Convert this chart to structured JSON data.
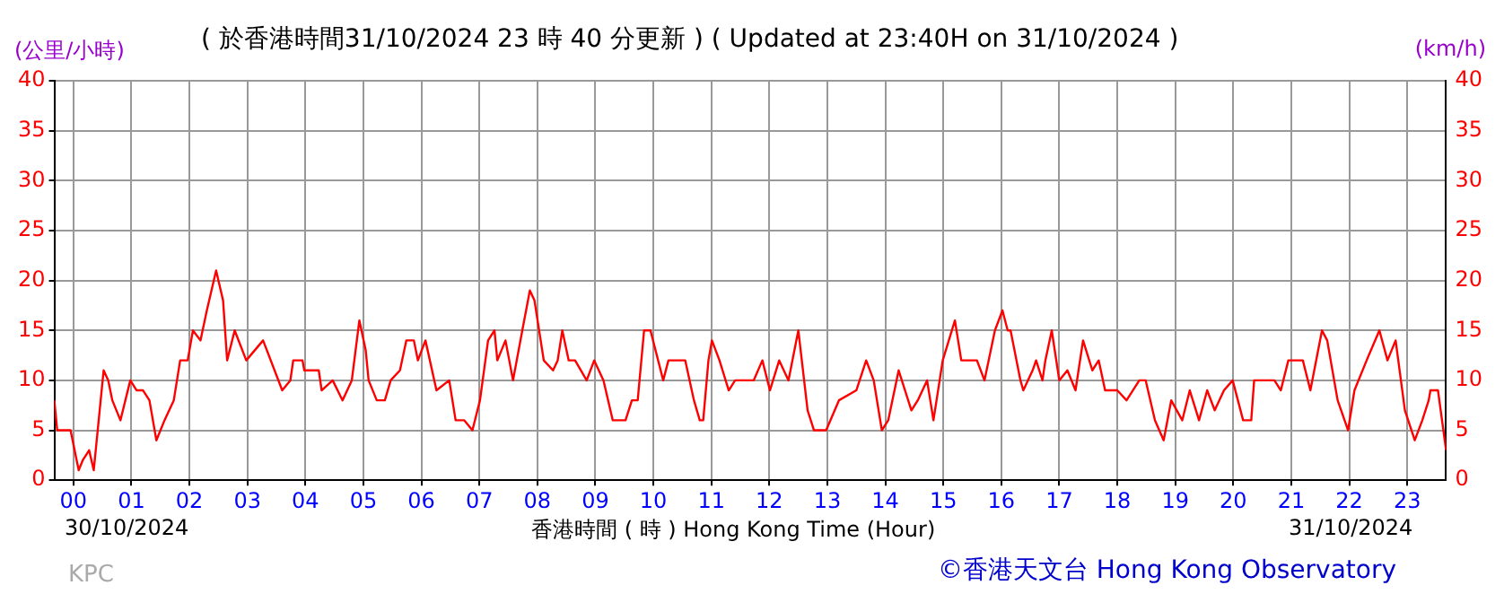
{
  "chart_data": {
    "type": "line",
    "title": "( 於香港時間31/10/2024 23 時 40 分更新 ) ( Updated at 23:40H on 31/10/2024 )",
    "xlabel": "香港時間 ( 時 ) Hong Kong Time (Hour)",
    "ylabel": "(公里/小時)",
    "y2label": "(km/h)",
    "annotations": [
      "30/10/2024",
      "31/10/2024",
      "KPC",
      "©香港天文台 Hong Kong Observatory"
    ],
    "series": [
      {
        "color": "#ff0000",
        "x": [
          -0.33,
          -0.28,
          -0.05,
          0.09,
          0.16,
          0.27,
          0.35,
          0.52,
          0.6,
          0.67,
          0.81,
          0.98,
          1.09,
          1.2,
          1.31,
          1.43,
          1.57,
          1.73,
          1.84,
          1.97,
          2.06,
          2.19,
          2.3,
          2.46,
          2.58,
          2.65,
          2.78,
          2.98,
          3.27,
          3.6,
          3.74,
          3.79,
          3.95,
          3.98,
          4.23,
          4.28,
          4.47,
          4.64,
          4.8,
          4.93,
          5.04,
          5.09,
          5.23,
          5.37,
          5.47,
          5.63,
          5.74,
          5.87,
          5.94,
          6.07,
          6.26,
          6.48,
          6.59,
          6.74,
          6.88,
          7.01,
          7.15,
          7.26,
          7.31,
          7.45,
          7.58,
          7.74,
          7.87,
          7.95,
          8.11,
          8.27,
          8.35,
          8.43,
          8.54,
          8.65,
          8.85,
          8.98,
          9.14,
          9.3,
          9.52,
          9.63,
          9.73,
          9.84,
          9.95,
          10.17,
          10.26,
          10.55,
          10.7,
          10.8,
          10.86,
          10.95,
          11.01,
          11.14,
          11.3,
          11.41,
          11.73,
          11.88,
          12.01,
          12.17,
          12.33,
          12.5,
          12.66,
          12.77,
          12.98,
          13.2,
          13.5,
          13.67,
          13.8,
          13.94,
          14.05,
          14.23,
          14.45,
          14.56,
          14.72,
          14.83,
          14.99,
          15.2,
          15.31,
          15.58,
          15.71,
          15.89,
          16.02,
          16.11,
          16.16,
          16.33,
          16.38,
          16.54,
          16.6,
          16.71,
          16.76,
          16.87,
          17.0,
          17.14,
          17.28,
          17.41,
          17.57,
          17.68,
          17.79,
          18.0,
          18.16,
          18.38,
          18.49,
          18.65,
          18.8,
          18.93,
          19.12,
          19.25,
          19.41,
          19.55,
          19.68,
          19.84,
          19.99,
          20.17,
          20.31,
          20.36,
          20.71,
          20.82,
          20.95,
          21.2,
          21.33,
          21.53,
          21.62,
          21.8,
          21.98,
          22.09,
          22.3,
          22.52,
          22.66,
          22.8,
          22.96,
          23.13,
          23.26,
          23.37,
          23.4,
          23.53,
          23.67
        ],
        "values": [
          8,
          5,
          5,
          1,
          2,
          3,
          1,
          11,
          10,
          8,
          6,
          10,
          9,
          9,
          8,
          4,
          6,
          8,
          12,
          12,
          15,
          14,
          17,
          21,
          18,
          12,
          15,
          12,
          14,
          9,
          10,
          12,
          12,
          11,
          11,
          9,
          10,
          8,
          10,
          16,
          13,
          10,
          8,
          8,
          10,
          11,
          14,
          14,
          12,
          14,
          9,
          10,
          6,
          6,
          5,
          8,
          14,
          15,
          12,
          14,
          10,
          15,
          19,
          18,
          12,
          11,
          12,
          15,
          12,
          12,
          10,
          12,
          10,
          6,
          6,
          8,
          8,
          15,
          15,
          10,
          12,
          12,
          8,
          6,
          6,
          12,
          14,
          12,
          9,
          10,
          10,
          12,
          9,
          12,
          10,
          15,
          7,
          5,
          5,
          8,
          9,
          12,
          10,
          5,
          6,
          11,
          7,
          8,
          10,
          6,
          12,
          16,
          12,
          12,
          10,
          15,
          17,
          15,
          15,
          10,
          9,
          11,
          12,
          10,
          12,
          15,
          10,
          11,
          9,
          14,
          11,
          12,
          9,
          9,
          8,
          10,
          10,
          6,
          4,
          8,
          6,
          9,
          6,
          9,
          7,
          9,
          10,
          6,
          6,
          10,
          10,
          9,
          12,
          12,
          9,
          15,
          14,
          8,
          5,
          9,
          12,
          15,
          12,
          14,
          7,
          4,
          6,
          8,
          9,
          9,
          3
        ]
      }
    ],
    "xlim": [
      -0.33,
      23.67
    ],
    "xticks": [
      {
        "value": 0,
        "label": "00"
      },
      {
        "value": 1,
        "label": "01"
      },
      {
        "value": 2,
        "label": "02"
      },
      {
        "value": 3,
        "label": "03"
      },
      {
        "value": 4,
        "label": "04"
      },
      {
        "value": 5,
        "label": "05"
      },
      {
        "value": 6,
        "label": "06"
      },
      {
        "value": 7,
        "label": "07"
      },
      {
        "value": 8,
        "label": "08"
      },
      {
        "value": 9,
        "label": "09"
      },
      {
        "value": 10,
        "label": "10"
      },
      {
        "value": 11,
        "label": "11"
      },
      {
        "value": 12,
        "label": "12"
      },
      {
        "value": 13,
        "label": "13"
      },
      {
        "value": 14,
        "label": "14"
      },
      {
        "value": 15,
        "label": "15"
      },
      {
        "value": 16,
        "label": "16"
      },
      {
        "value": 17,
        "label": "17"
      },
      {
        "value": 18,
        "label": "18"
      },
      {
        "value": 19,
        "label": "19"
      },
      {
        "value": 20,
        "label": "20"
      },
      {
        "value": 21,
        "label": "21"
      },
      {
        "value": 22,
        "label": "22"
      },
      {
        "value": 23,
        "label": "23"
      }
    ],
    "ylim": [
      0,
      40
    ],
    "yticks": [
      0,
      5,
      10,
      15,
      20,
      25,
      30,
      35,
      40
    ],
    "y2lim": [
      0,
      40
    ],
    "y2ticks": [
      0,
      5,
      10,
      15,
      20,
      25,
      30,
      35,
      40
    ],
    "grid": true,
    "legend": false,
    "marker": "none",
    "line_style": "solid"
  }
}
